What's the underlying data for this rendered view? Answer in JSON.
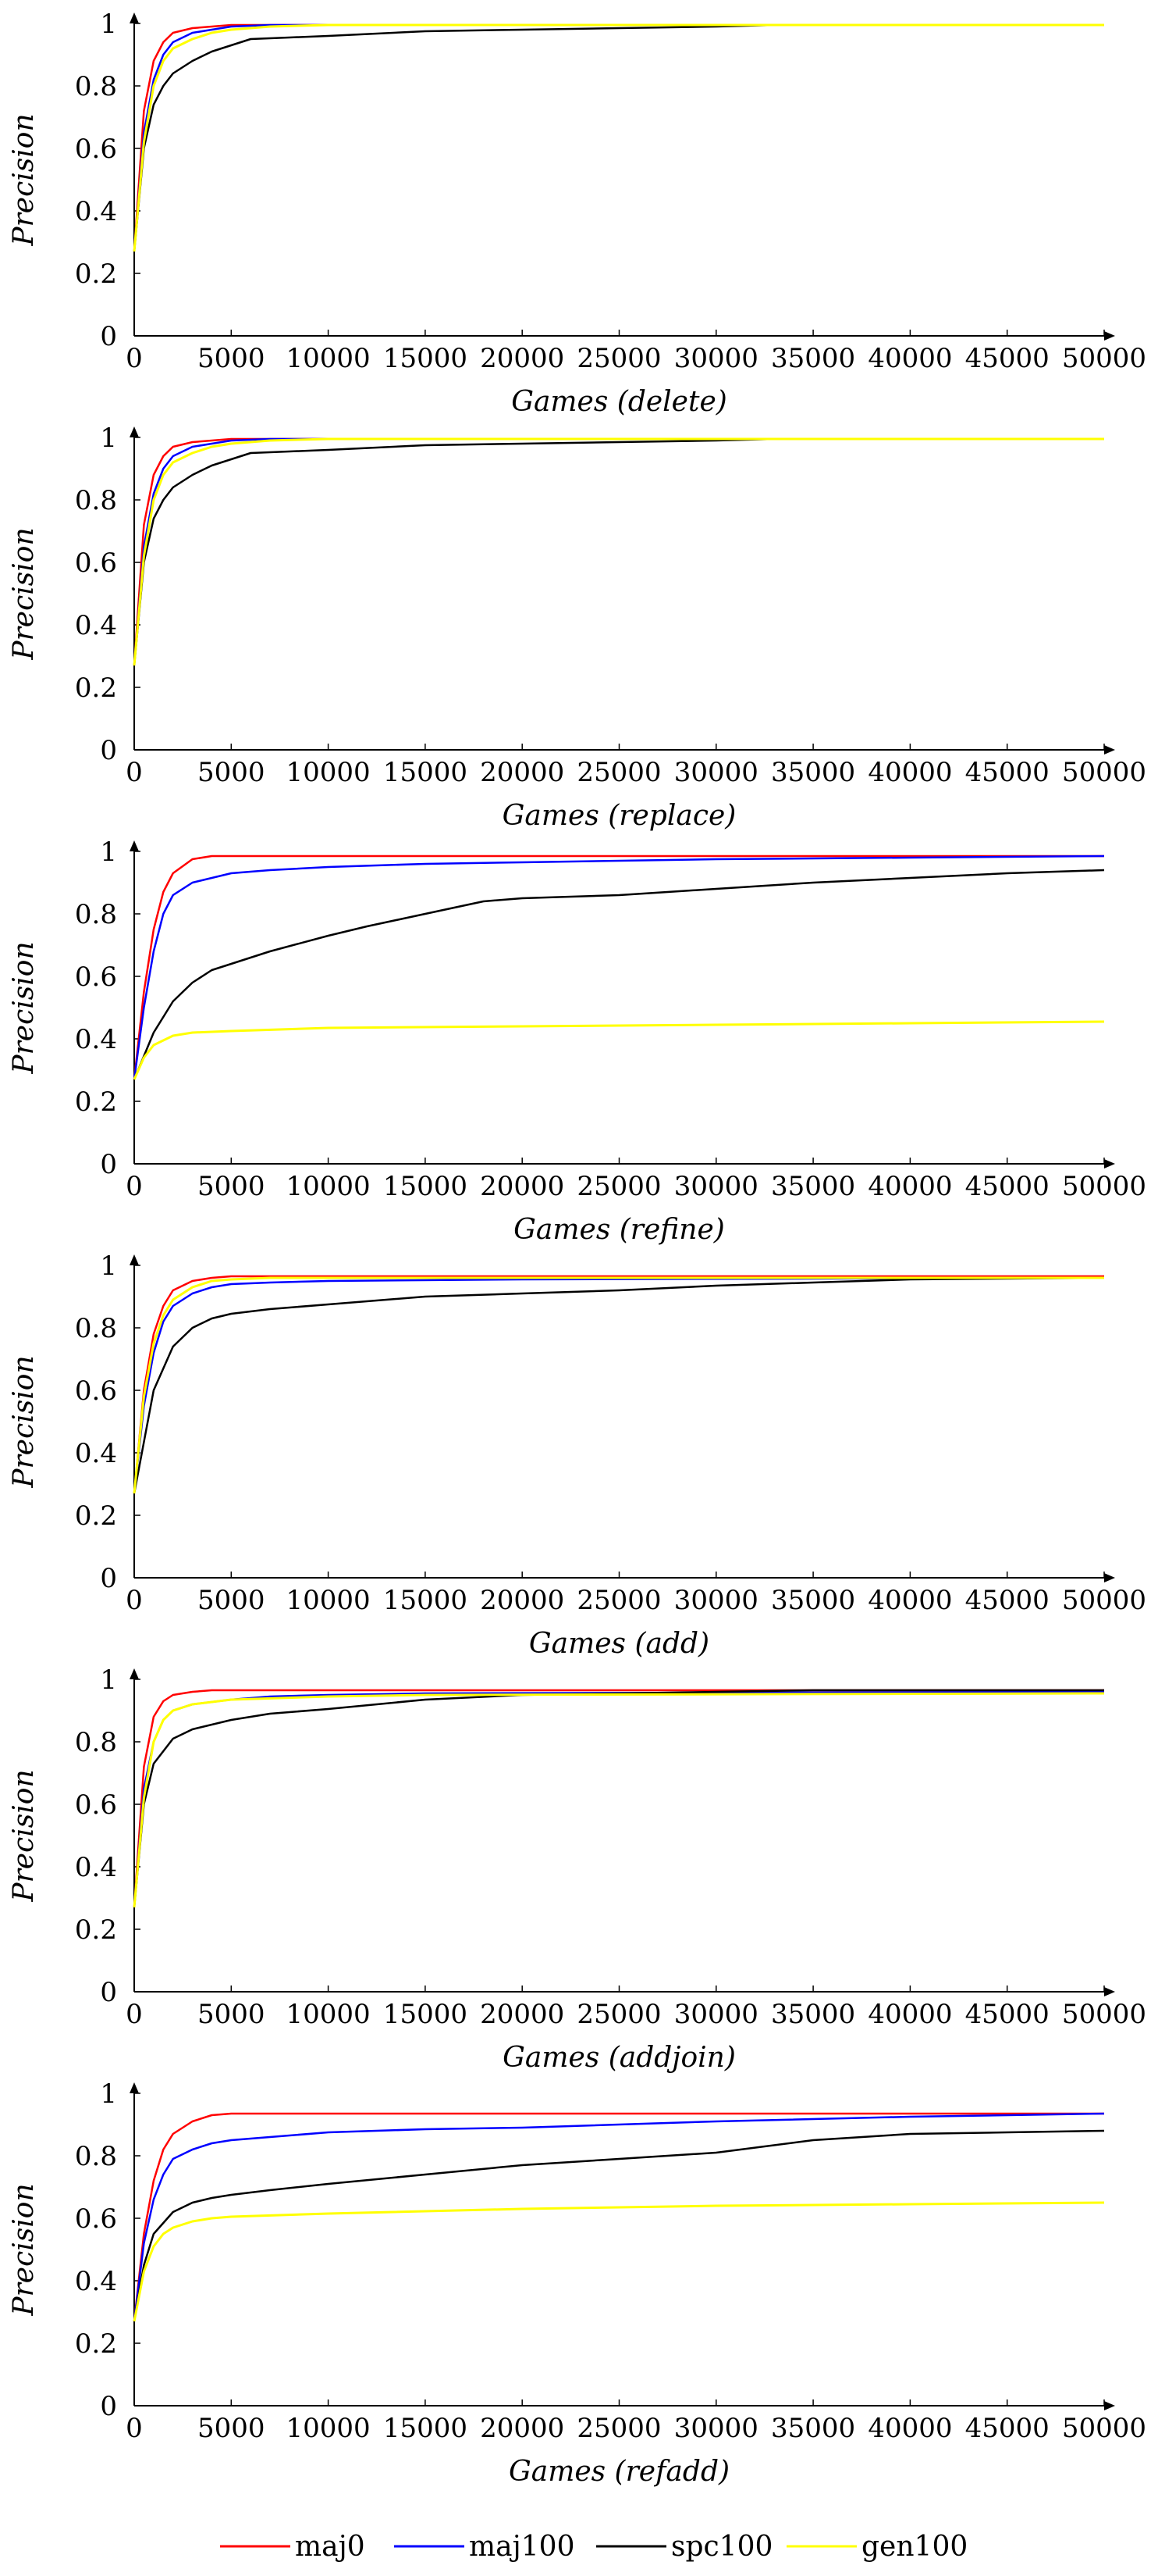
{
  "series_styles": [
    {
      "name": "maj0",
      "color": "#ff0000"
    },
    {
      "name": "maj100",
      "color": "#0000ff"
    },
    {
      "name": "spc100",
      "color": "#000000"
    },
    {
      "name": "gen100",
      "color": "#ffff00"
    }
  ],
  "legend": {
    "placement": "bottom-center",
    "entries": [
      "maj0",
      "maj100",
      "spc100",
      "gen100"
    ]
  },
  "chart_data": [
    {
      "type": "line",
      "xlabel": "Games (delete)",
      "ylabel": "Precision",
      "xlim": [
        0,
        50000
      ],
      "ylim": [
        0,
        1
      ],
      "xticks": [
        0,
        5000,
        10000,
        15000,
        20000,
        25000,
        30000,
        35000,
        40000,
        45000,
        50000
      ],
      "yticks": [
        0,
        0.2,
        0.4,
        0.6,
        0.8,
        1
      ],
      "grid": false,
      "series": [
        {
          "name": "maj0",
          "x": [
            0,
            500,
            1000,
            1500,
            2000,
            3000,
            4000,
            5000,
            7000,
            10000,
            50000
          ],
          "y": [
            0.27,
            0.72,
            0.88,
            0.94,
            0.97,
            0.985,
            0.99,
            0.995,
            0.995,
            0.995,
            0.995
          ]
        },
        {
          "name": "maj100",
          "x": [
            0,
            500,
            1000,
            1500,
            2000,
            3000,
            4000,
            5000,
            7000,
            10000,
            50000
          ],
          "y": [
            0.27,
            0.65,
            0.82,
            0.9,
            0.94,
            0.97,
            0.98,
            0.99,
            0.995,
            0.995,
            0.995
          ]
        },
        {
          "name": "spc100",
          "x": [
            0,
            500,
            1000,
            1500,
            2000,
            3000,
            4000,
            5000,
            6000,
            8000,
            10000,
            15000,
            20000,
            25000,
            30000,
            33000,
            50000
          ],
          "y": [
            0.27,
            0.6,
            0.74,
            0.8,
            0.84,
            0.88,
            0.91,
            0.93,
            0.95,
            0.955,
            0.96,
            0.975,
            0.98,
            0.985,
            0.99,
            0.995,
            0.995
          ]
        },
        {
          "name": "gen100",
          "x": [
            0,
            500,
            1000,
            1500,
            2000,
            3000,
            4000,
            5000,
            7000,
            10000,
            50000
          ],
          "y": [
            0.27,
            0.62,
            0.8,
            0.88,
            0.92,
            0.95,
            0.97,
            0.98,
            0.99,
            0.995,
            0.995
          ]
        }
      ]
    },
    {
      "type": "line",
      "xlabel": "Games (replace)",
      "ylabel": "Precision",
      "xlim": [
        0,
        50000
      ],
      "ylim": [
        0,
        1
      ],
      "xticks": [
        0,
        5000,
        10000,
        15000,
        20000,
        25000,
        30000,
        35000,
        40000,
        45000,
        50000
      ],
      "yticks": [
        0,
        0.2,
        0.4,
        0.6,
        0.8,
        1
      ],
      "grid": false,
      "series": [
        {
          "name": "maj0",
          "x": [
            0,
            500,
            1000,
            1500,
            2000,
            3000,
            4000,
            5000,
            7000,
            10000,
            50000
          ],
          "y": [
            0.27,
            0.72,
            0.88,
            0.94,
            0.97,
            0.985,
            0.99,
            0.995,
            0.995,
            0.995,
            0.995
          ]
        },
        {
          "name": "maj100",
          "x": [
            0,
            500,
            1000,
            1500,
            2000,
            3000,
            4000,
            5000,
            7000,
            10000,
            50000
          ],
          "y": [
            0.27,
            0.65,
            0.82,
            0.9,
            0.94,
            0.97,
            0.98,
            0.99,
            0.995,
            0.995,
            0.995
          ]
        },
        {
          "name": "spc100",
          "x": [
            0,
            500,
            1000,
            1500,
            2000,
            3000,
            4000,
            5000,
            6000,
            8000,
            10000,
            15000,
            20000,
            25000,
            30000,
            33000,
            50000
          ],
          "y": [
            0.27,
            0.6,
            0.74,
            0.8,
            0.84,
            0.88,
            0.91,
            0.93,
            0.95,
            0.955,
            0.96,
            0.975,
            0.98,
            0.985,
            0.99,
            0.995,
            0.995
          ]
        },
        {
          "name": "gen100",
          "x": [
            0,
            500,
            1000,
            1500,
            2000,
            3000,
            4000,
            5000,
            7000,
            10000,
            50000
          ],
          "y": [
            0.27,
            0.62,
            0.8,
            0.88,
            0.92,
            0.95,
            0.97,
            0.98,
            0.99,
            0.995,
            0.995
          ]
        }
      ]
    },
    {
      "type": "line",
      "xlabel": "Games (refine)",
      "ylabel": "Precision",
      "xlim": [
        0,
        50000
      ],
      "ylim": [
        0,
        1
      ],
      "xticks": [
        0,
        5000,
        10000,
        15000,
        20000,
        25000,
        30000,
        35000,
        40000,
        45000,
        50000
      ],
      "yticks": [
        0,
        0.2,
        0.4,
        0.6,
        0.8,
        1
      ],
      "grid": false,
      "series": [
        {
          "name": "maj0",
          "x": [
            0,
            500,
            1000,
            1500,
            2000,
            3000,
            4000,
            5000,
            50000
          ],
          "y": [
            0.27,
            0.55,
            0.75,
            0.87,
            0.93,
            0.975,
            0.985,
            0.985,
            0.985
          ]
        },
        {
          "name": "maj100",
          "x": [
            0,
            500,
            1000,
            1500,
            2000,
            3000,
            4000,
            5000,
            7000,
            10000,
            15000,
            20000,
            30000,
            40000,
            50000
          ],
          "y": [
            0.27,
            0.5,
            0.68,
            0.8,
            0.86,
            0.9,
            0.915,
            0.93,
            0.94,
            0.95,
            0.96,
            0.965,
            0.975,
            0.98,
            0.985
          ]
        },
        {
          "name": "spc100",
          "x": [
            0,
            1000,
            2000,
            3000,
            4000,
            5000,
            7000,
            10000,
            12000,
            15000,
            18000,
            20000,
            25000,
            30000,
            35000,
            40000,
            45000,
            50000
          ],
          "y": [
            0.27,
            0.42,
            0.52,
            0.58,
            0.62,
            0.64,
            0.68,
            0.73,
            0.76,
            0.8,
            0.84,
            0.85,
            0.86,
            0.88,
            0.9,
            0.915,
            0.93,
            0.94
          ]
        },
        {
          "name": "gen100",
          "x": [
            0,
            500,
            1000,
            2000,
            3000,
            5000,
            10000,
            20000,
            30000,
            40000,
            50000
          ],
          "y": [
            0.27,
            0.34,
            0.38,
            0.41,
            0.42,
            0.425,
            0.435,
            0.44,
            0.445,
            0.45,
            0.455
          ]
        }
      ]
    },
    {
      "type": "line",
      "xlabel": "Games (add)",
      "ylabel": "Precision",
      "xlim": [
        0,
        50000
      ],
      "ylim": [
        0,
        1
      ],
      "xticks": [
        0,
        5000,
        10000,
        15000,
        20000,
        25000,
        30000,
        35000,
        40000,
        45000,
        50000
      ],
      "yticks": [
        0,
        0.2,
        0.4,
        0.6,
        0.8,
        1
      ],
      "grid": false,
      "series": [
        {
          "name": "maj0",
          "x": [
            0,
            500,
            1000,
            1500,
            2000,
            3000,
            4000,
            5000,
            7000,
            50000
          ],
          "y": [
            0.27,
            0.6,
            0.78,
            0.87,
            0.92,
            0.95,
            0.96,
            0.965,
            0.965,
            0.965
          ]
        },
        {
          "name": "maj100",
          "x": [
            0,
            500,
            1000,
            1500,
            2000,
            3000,
            4000,
            5000,
            7000,
            10000,
            20000,
            50000
          ],
          "y": [
            0.27,
            0.55,
            0.72,
            0.82,
            0.87,
            0.91,
            0.93,
            0.94,
            0.945,
            0.95,
            0.955,
            0.96
          ]
        },
        {
          "name": "spc100",
          "x": [
            0,
            1000,
            2000,
            3000,
            4000,
            5000,
            7000,
            10000,
            15000,
            20000,
            25000,
            30000,
            35000,
            40000,
            50000
          ],
          "y": [
            0.27,
            0.6,
            0.74,
            0.8,
            0.83,
            0.845,
            0.86,
            0.875,
            0.9,
            0.91,
            0.92,
            0.935,
            0.945,
            0.955,
            0.96
          ]
        },
        {
          "name": "gen100",
          "x": [
            0,
            500,
            1000,
            1500,
            2000,
            3000,
            4000,
            5000,
            7000,
            50000
          ],
          "y": [
            0.27,
            0.58,
            0.75,
            0.84,
            0.89,
            0.93,
            0.95,
            0.955,
            0.96,
            0.96
          ]
        }
      ]
    },
    {
      "type": "line",
      "xlabel": "Games (addjoin)",
      "ylabel": "Precision",
      "xlim": [
        0,
        50000
      ],
      "ylim": [
        0,
        1
      ],
      "xticks": [
        0,
        5000,
        10000,
        15000,
        20000,
        25000,
        30000,
        35000,
        40000,
        45000,
        50000
      ],
      "yticks": [
        0,
        0.2,
        0.4,
        0.6,
        0.8,
        1
      ],
      "grid": false,
      "series": [
        {
          "name": "maj0",
          "x": [
            0,
            500,
            1000,
            1500,
            2000,
            3000,
            4000,
            50000
          ],
          "y": [
            0.27,
            0.72,
            0.88,
            0.93,
            0.95,
            0.96,
            0.965,
            0.965
          ]
        },
        {
          "name": "maj100",
          "x": [
            0,
            500,
            1000,
            1500,
            2000,
            3000,
            5000,
            7000,
            10000,
            15000,
            50000
          ],
          "y": [
            0.27,
            0.65,
            0.8,
            0.87,
            0.9,
            0.92,
            0.935,
            0.945,
            0.95,
            0.955,
            0.96
          ]
        },
        {
          "name": "spc100",
          "x": [
            0,
            500,
            1000,
            2000,
            3000,
            5000,
            7000,
            10000,
            15000,
            20000,
            30000,
            35000,
            50000
          ],
          "y": [
            0.27,
            0.6,
            0.73,
            0.81,
            0.84,
            0.87,
            0.89,
            0.905,
            0.935,
            0.95,
            0.96,
            0.965,
            0.965
          ]
        },
        {
          "name": "gen100",
          "x": [
            0,
            500,
            1000,
            1500,
            2000,
            3000,
            5000,
            10000,
            15000,
            50000
          ],
          "y": [
            0.27,
            0.62,
            0.8,
            0.87,
            0.9,
            0.92,
            0.935,
            0.945,
            0.95,
            0.955
          ]
        }
      ]
    },
    {
      "type": "line",
      "xlabel": "Games (refadd)",
      "ylabel": "Precision",
      "xlim": [
        0,
        50000
      ],
      "ylim": [
        0,
        1
      ],
      "xticks": [
        0,
        5000,
        10000,
        15000,
        20000,
        25000,
        30000,
        35000,
        40000,
        45000,
        50000
      ],
      "yticks": [
        0,
        0.2,
        0.4,
        0.6,
        0.8,
        1
      ],
      "grid": false,
      "series": [
        {
          "name": "maj0",
          "x": [
            0,
            500,
            1000,
            1500,
            2000,
            3000,
            4000,
            5000,
            50000
          ],
          "y": [
            0.27,
            0.55,
            0.72,
            0.82,
            0.87,
            0.91,
            0.93,
            0.935,
            0.935
          ]
        },
        {
          "name": "maj100",
          "x": [
            0,
            500,
            1000,
            1500,
            2000,
            3000,
            4000,
            5000,
            7000,
            10000,
            15000,
            20000,
            30000,
            40000,
            50000
          ],
          "y": [
            0.27,
            0.52,
            0.66,
            0.74,
            0.79,
            0.82,
            0.84,
            0.85,
            0.86,
            0.875,
            0.885,
            0.89,
            0.91,
            0.925,
            0.935
          ]
        },
        {
          "name": "spc100",
          "x": [
            0,
            500,
            1000,
            2000,
            3000,
            4000,
            5000,
            7000,
            10000,
            15000,
            20000,
            25000,
            30000,
            35000,
            40000,
            45000,
            50000
          ],
          "y": [
            0.27,
            0.45,
            0.55,
            0.62,
            0.65,
            0.665,
            0.675,
            0.69,
            0.71,
            0.74,
            0.77,
            0.79,
            0.81,
            0.85,
            0.87,
            0.875,
            0.88
          ]
        },
        {
          "name": "gen100",
          "x": [
            0,
            500,
            1000,
            1500,
            2000,
            3000,
            4000,
            5000,
            10000,
            20000,
            30000,
            40000,
            50000
          ],
          "y": [
            0.27,
            0.43,
            0.51,
            0.55,
            0.57,
            0.59,
            0.6,
            0.605,
            0.615,
            0.63,
            0.64,
            0.645,
            0.65
          ]
        }
      ]
    }
  ]
}
